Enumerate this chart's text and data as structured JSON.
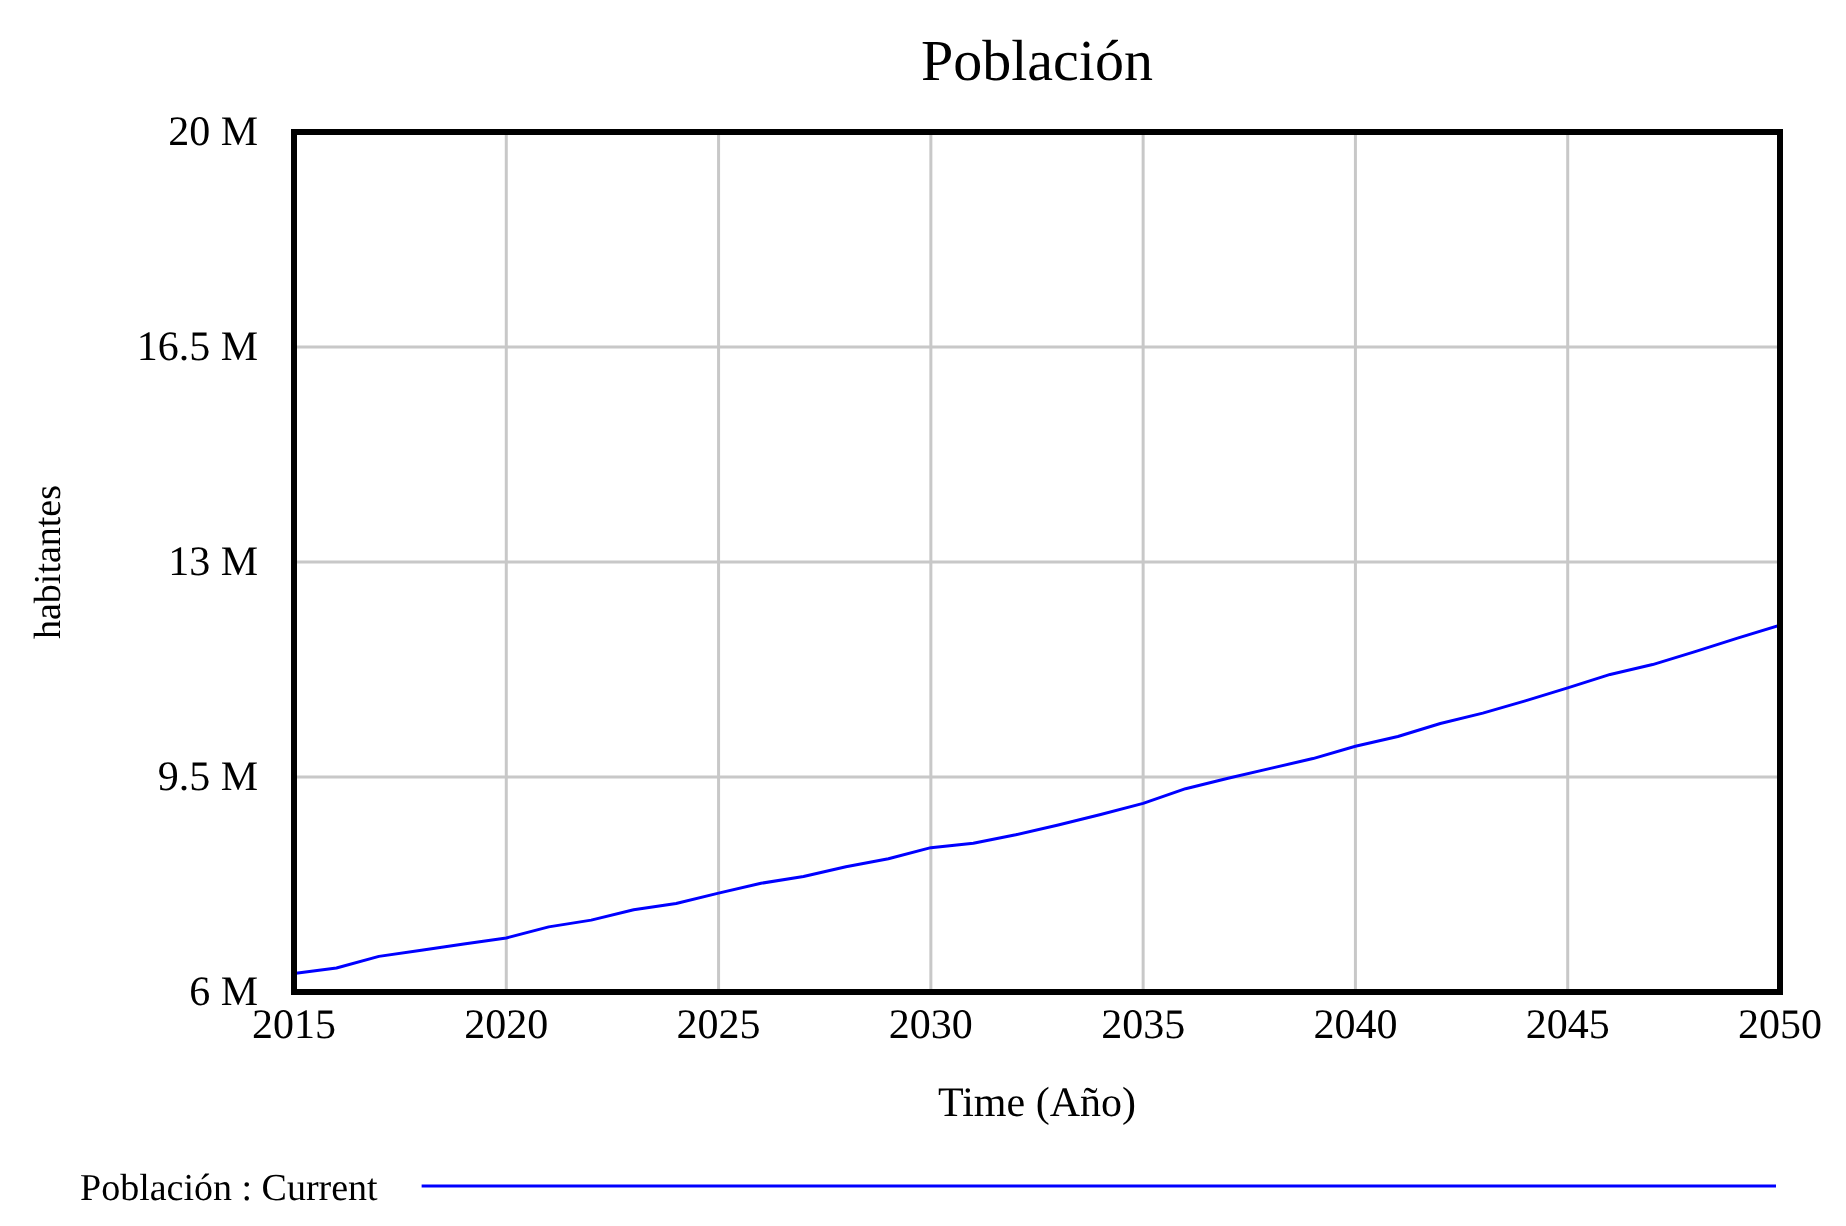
{
  "chart_data": {
    "type": "line",
    "title": "Población",
    "xlabel": "Time (Año)",
    "ylabel": "habitantes",
    "x": [
      2015,
      2016,
      2017,
      2018,
      2019,
      2020,
      2021,
      2022,
      2023,
      2024,
      2025,
      2026,
      2027,
      2028,
      2029,
      2030,
      2031,
      2032,
      2033,
      2034,
      2035,
      2036,
      2037,
      2038,
      2039,
      2040,
      2041,
      2042,
      2043,
      2044,
      2045,
      2046,
      2047,
      2048,
      2049,
      2050
    ],
    "series": [
      {
        "name": "Población : Current",
        "color": "#0000ff",
        "values": [
          6.3,
          6.39,
          6.58,
          6.68,
          6.78,
          6.88,
          7.06,
          7.17,
          7.34,
          7.44,
          7.61,
          7.77,
          7.88,
          8.04,
          8.17,
          8.35,
          8.42,
          8.56,
          8.72,
          8.89,
          9.07,
          9.31,
          9.48,
          9.64,
          9.8,
          10.0,
          10.16,
          10.37,
          10.54,
          10.74,
          10.95,
          11.17,
          11.33,
          11.54,
          11.76,
          11.97
        ]
      }
    ],
    "xlim": [
      2015,
      2050
    ],
    "xticks": [
      2015,
      2020,
      2025,
      2030,
      2035,
      2040,
      2045,
      2050
    ],
    "ylim": [
      6,
      20
    ],
    "yticks": [
      {
        "value": 6,
        "label": "6 M"
      },
      {
        "value": 9.5,
        "label": "9.5 M"
      },
      {
        "value": 13,
        "label": "13 M"
      },
      {
        "value": 16.5,
        "label": "16.5 M"
      },
      {
        "value": 20,
        "label": "20 M"
      }
    ],
    "grid": true,
    "legend": "bottom",
    "line_style": "solid",
    "marker": "none"
  }
}
